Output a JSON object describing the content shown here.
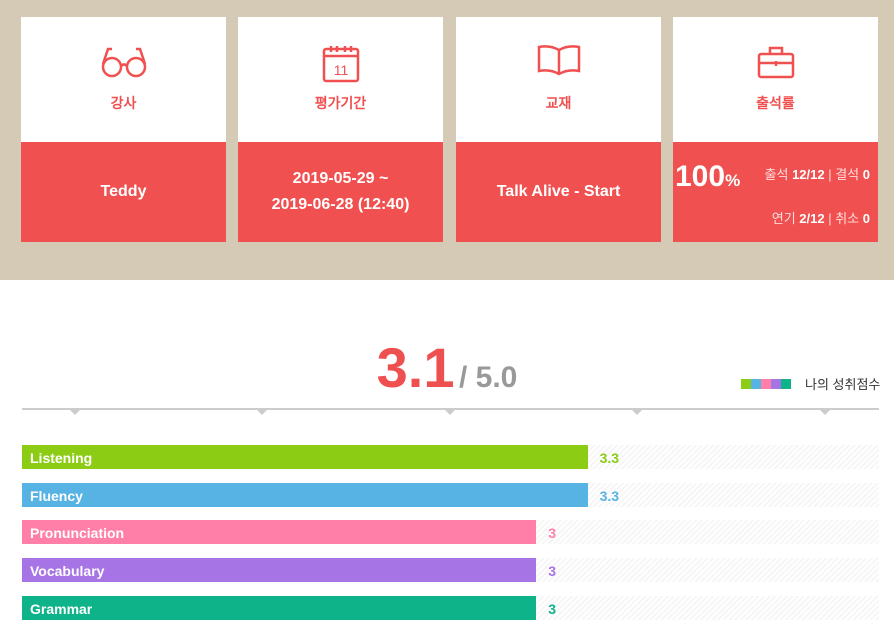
{
  "cards": [
    {
      "label": "강사",
      "value": "Teddy",
      "icon": "glasses-icon"
    },
    {
      "label": "평가기간",
      "value_line1": "2019-05-29 ~",
      "value_line2": "2019-06-28 (12:40)",
      "icon": "calendar-icon",
      "icon_text": "11"
    },
    {
      "label": "교재",
      "value": "Talk Alive - Start",
      "icon": "book-icon"
    },
    {
      "label": "출석률",
      "icon": "briefcase-icon",
      "rate": "100",
      "rate_unit": "%",
      "attend_label": "출석",
      "attend": "12/12",
      "absent_label": "결석",
      "absent": "0",
      "postpone_label": "연기",
      "postpone": "2/12",
      "cancel_label": "취소",
      "cancel": "0"
    }
  ],
  "score": {
    "value": "3.1",
    "max": "/ 5.0"
  },
  "legend": {
    "label": "나의 성취점수",
    "colors": [
      "#8ccc14",
      "#56b3e3",
      "#ff7fa8",
      "#a774e6",
      "#0eb38a"
    ]
  },
  "chart_data": {
    "type": "bar",
    "xlim": [
      0,
      5
    ],
    "categories": [
      "Listening",
      "Fluency",
      "Pronunciation",
      "Vocabulary",
      "Grammar"
    ],
    "values": [
      3.3,
      3.3,
      3,
      3,
      3
    ],
    "labels": [
      "3.3",
      "3.3",
      "3",
      "3",
      "3"
    ],
    "colors": [
      "#8ccc14",
      "#56b3e3",
      "#ff7fa8",
      "#a774e6",
      "#0eb38a"
    ]
  }
}
